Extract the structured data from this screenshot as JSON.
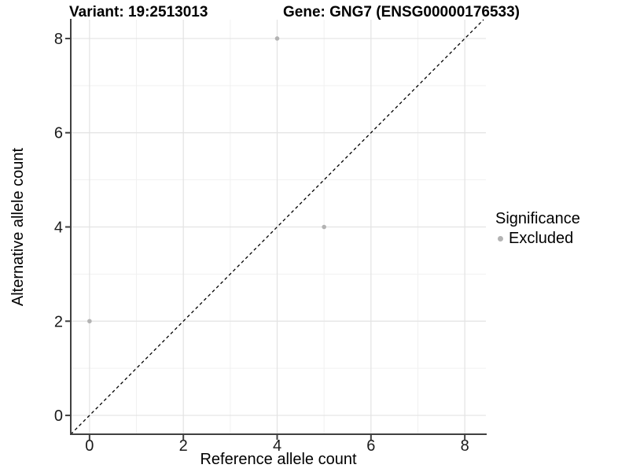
{
  "chart_data": {
    "type": "scatter",
    "title_variant": "Variant: 19:2513013",
    "title_gene": "Gene: GNG7 (ENSG00000176533)",
    "xlabel": "Reference allele count",
    "ylabel": "Alternative allele count",
    "xlim": [
      -0.4,
      8.45
    ],
    "ylim": [
      -0.4,
      8.4
    ],
    "x_ticks": [
      0,
      2,
      4,
      6,
      8
    ],
    "y_ticks": [
      0,
      2,
      4,
      6,
      8
    ],
    "grid": "major+minor",
    "series": [
      {
        "name": "Excluded",
        "color": "#b3b3b3",
        "marker": "circle",
        "points": [
          {
            "x": 0,
            "y": 2
          },
          {
            "x": 4,
            "y": 8
          },
          {
            "x": 5,
            "y": 4
          }
        ]
      }
    ],
    "reference_line": {
      "slope": 1,
      "intercept": 0,
      "style": "dashed",
      "color": "#000000"
    },
    "legend": {
      "title": "Significance",
      "position": "right",
      "items": [
        {
          "label": "Excluded",
          "color": "#b3b3b3",
          "marker": "circle"
        }
      ]
    },
    "colors": {
      "background": "#ffffff",
      "grid_major": "#e3e3e3",
      "grid_minor": "#f1f1f1",
      "axis_line": "#404040",
      "tick_text": "#1a1a1a",
      "title_text": "#000000"
    }
  }
}
